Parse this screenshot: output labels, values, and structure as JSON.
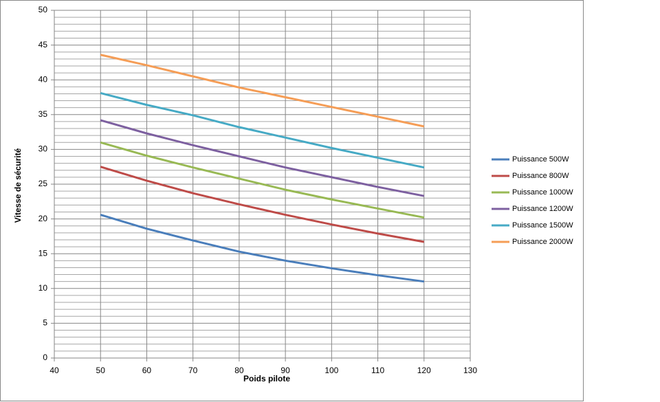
{
  "chart_data": {
    "type": "line",
    "x_label": "Poids pilote",
    "y_label": "Vitesse de sécurité",
    "x": [
      50,
      60,
      70,
      80,
      90,
      100,
      110,
      120
    ],
    "xlim": [
      40,
      130
    ],
    "xticks": [
      40,
      50,
      60,
      70,
      80,
      90,
      100,
      110,
      120,
      130
    ],
    "ylim": [
      0,
      50
    ],
    "yticks": [
      0,
      5,
      10,
      15,
      20,
      25,
      30,
      35,
      40,
      45,
      50
    ],
    "yminorticks": [
      1,
      2,
      3,
      4,
      6,
      7,
      8,
      9,
      11,
      12,
      13,
      14,
      16,
      17,
      18,
      19,
      21,
      22,
      23,
      24,
      26,
      27,
      28,
      29,
      31,
      32,
      33,
      34,
      36,
      37,
      38,
      39,
      41,
      42,
      43,
      44,
      46,
      47,
      48,
      49
    ],
    "grid": true,
    "legend": "right",
    "series": [
      {
        "name": "Puissance 500W",
        "color": "#4a7ebb",
        "values": [
          20.6,
          18.6,
          16.9,
          15.3,
          14.0,
          12.9,
          11.9,
          11.0
        ]
      },
      {
        "name": "Puissance 800W",
        "color": "#be4b48",
        "values": [
          27.5,
          25.5,
          23.7,
          22.1,
          20.6,
          19.2,
          17.9,
          16.7
        ]
      },
      {
        "name": "Puissance 1000W",
        "color": "#98b954",
        "values": [
          31.0,
          29.1,
          27.4,
          25.8,
          24.2,
          22.8,
          21.5,
          20.2
        ]
      },
      {
        "name": "Puissance 1200W",
        "color": "#7d60a0",
        "values": [
          34.2,
          32.3,
          30.6,
          29.0,
          27.4,
          26.0,
          24.6,
          23.3
        ]
      },
      {
        "name": "Puissance 1500W",
        "color": "#46aac5",
        "values": [
          38.1,
          36.4,
          34.9,
          33.2,
          31.7,
          30.2,
          28.8,
          27.4
        ]
      },
      {
        "name": "Puissance 2000W",
        "color": "#f59d56",
        "values": [
          43.6,
          42.1,
          40.5,
          38.9,
          37.5,
          36.1,
          34.7,
          33.3
        ]
      }
    ]
  }
}
